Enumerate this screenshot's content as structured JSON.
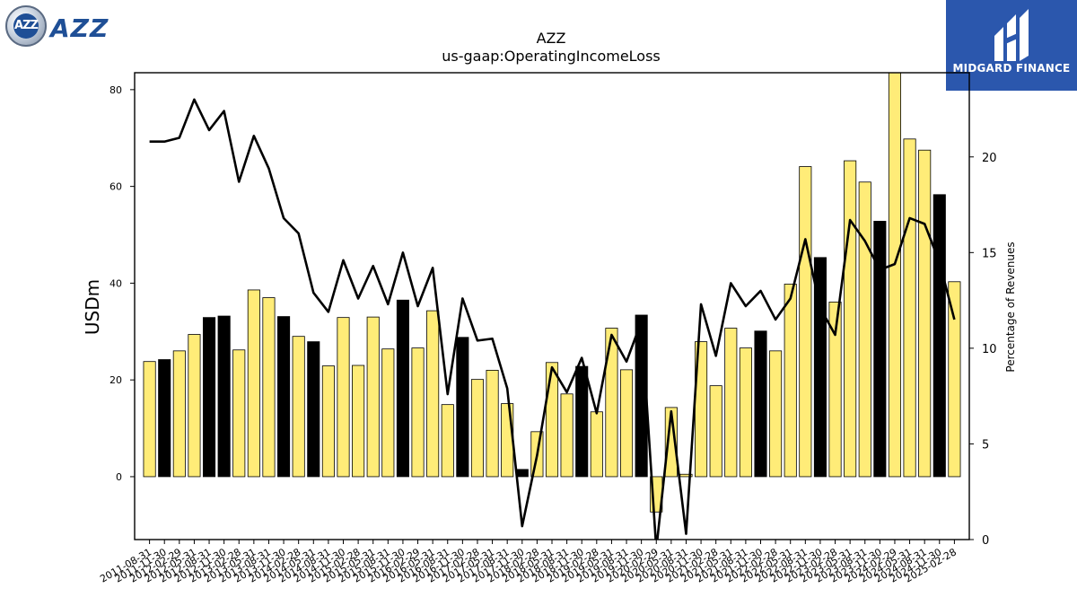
{
  "logos": {
    "left_text": "AZZ",
    "left_badge": "AZZ",
    "right_text": "MIDGARD FINANCE"
  },
  "chart_data": {
    "type": "bar",
    "title": "AZZ",
    "subtitle": "us-gaap:OperatingIncomeLoss",
    "ylabel": "USDm",
    "y2label": "Percentage of Revenues",
    "ylim": [
      -13,
      83.5
    ],
    "y2lim": [
      0,
      24.4
    ],
    "yticks": [
      0,
      20,
      40,
      60,
      80
    ],
    "y2ticks": [
      0,
      5,
      10,
      15,
      20
    ],
    "tick_labels_shown": [
      "2011-08-31",
      "2011-11-30",
      "2012-02-29",
      "2012-05-31",
      "2012-08-31",
      "2012-11-30",
      "2013-02-28",
      "2013-05-31",
      "2013-08-31",
      "2013-11-30",
      "2014-02-28",
      "2014-05-31",
      "2014-08-31",
      "2014-11-30",
      "2015-02-28",
      "2015-05-31",
      "2015-08-31",
      "2015-11-30",
      "2016-02-29",
      "2016-05-31",
      "2016-08-31",
      "2016-11-30",
      "2017-02-28",
      "2017-05-31",
      "2017-08-31",
      "2017-11-30",
      "2018-02-28",
      "2018-05-31",
      "2018-08-31",
      "2018-11-30",
      "2019-02-28",
      "2019-05-31",
      "2019-08-31",
      "2019-11-30",
      "2020-02-29",
      "2020-05-31",
      "2020-08-31",
      "2020-11-30",
      "2021-02-28",
      "2021-05-31",
      "2021-08-31",
      "2021-11-30",
      "2022-02-28",
      "2022-05-31",
      "2022-08-31",
      "2022-11-30",
      "2023-02-28",
      "2023-05-31",
      "2023-08-31",
      "2023-11-30",
      "2024-02-29",
      "2024-05-31",
      "2024-08-31",
      "2024-11-30",
      "2025-02-28"
    ],
    "categories": [
      "2011-08-31",
      "2011-11-30",
      "2012-02-29",
      "2012-05-31",
      "2012-08-31",
      "2012-11-30",
      "2013-02-28",
      "2013-05-31",
      "2013-08-31",
      "2013-11-30",
      "2014-02-28",
      "2014-05-31",
      "2014-08-31",
      "2014-11-30",
      "2015-02-28",
      "2015-05-31",
      "2015-08-31",
      "2015-11-30",
      "2016-02-29",
      "2016-05-31",
      "2016-08-31",
      "2016-11-30",
      "2017-02-28",
      "2017-05-31",
      "2017-08-31",
      "2017-11-30",
      "2018-02-28",
      "2018-05-31",
      "2018-08-31",
      "2018-11-30",
      "2019-02-28",
      "2019-05-31",
      "2019-08-31",
      "2019-11-30",
      "2020-02-29",
      "2020-05-31",
      "2020-08-31",
      "2020-11-30",
      "2021-02-28",
      "2021-05-31",
      "2021-08-31",
      "2021-11-30",
      "2022-02-28",
      "2022-05-31",
      "2022-08-31",
      "2022-11-30",
      "2023-02-28",
      "2023-05-31",
      "2023-08-31",
      "2023-11-30",
      "2024-02-29",
      "2024-05-31",
      "2024-08-31",
      "2024-11-30",
      "2025-02-28"
    ],
    "series": [
      {
        "type": "bar",
        "axis": "left",
        "values": [
          23.8,
          24.2,
          26.0,
          29.4,
          32.9,
          33.2,
          26.2,
          38.6,
          37.0,
          33.1,
          29.0,
          27.9,
          22.9,
          32.9,
          23.0,
          33.0,
          26.4,
          36.5,
          26.6,
          34.3,
          14.9,
          28.8,
          20.1,
          22.0,
          15.1,
          1.5,
          9.3,
          23.6,
          17.1,
          22.8,
          13.4,
          30.7,
          22.1,
          33.4,
          -7.3,
          14.3,
          0.5,
          27.9,
          18.8,
          30.7,
          26.6,
          30.1,
          26.0,
          39.8,
          64.1,
          45.3,
          36.1,
          65.3,
          60.9,
          52.8,
          83.5,
          69.8,
          67.5,
          58.3,
          40.3
        ],
        "highlight_values": [
          24.2,
          33.2,
          33.1,
          32.9,
          36.5,
          28.8,
          1.5,
          22.8,
          33.4,
          27.9,
          30.1,
          45.3,
          52.8,
          58.3
        ],
        "colors": {
          "normal": "#ffec78",
          "highlight": "#000000",
          "edge": "#000000"
        }
      },
      {
        "type": "line",
        "axis": "right",
        "values": [
          20.8,
          20.8,
          21.0,
          23.0,
          21.4,
          22.4,
          18.7,
          21.1,
          19.4,
          16.8,
          16.0,
          12.9,
          11.9,
          14.6,
          12.6,
          14.3,
          12.3,
          15.0,
          12.2,
          14.2,
          7.6,
          12.6,
          10.4,
          10.5,
          7.9,
          0.7,
          4.4,
          9.0,
          7.7,
          9.5,
          6.6,
          10.7,
          9.3,
          11.4,
          -0.5,
          6.7,
          0.3,
          12.3,
          9.6,
          13.4,
          12.2,
          13.0,
          11.5,
          12.6,
          15.7,
          12.1,
          10.7,
          16.7,
          15.6,
          14.1,
          14.4,
          16.8,
          16.5,
          14.5,
          11.5
        ],
        "color": "#000000"
      }
    ],
    "grid": false,
    "legend": "none"
  }
}
